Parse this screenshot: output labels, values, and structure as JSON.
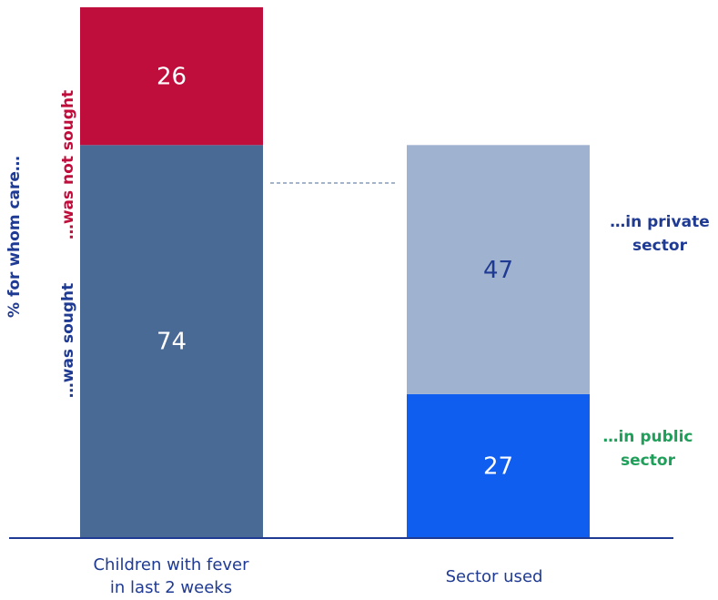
{
  "chart_data": {
    "type": "bar",
    "stacked": true,
    "categories": [
      "Children with fever\nin last 2 weeks",
      "Sector used"
    ],
    "ylabel": "% for whom care...",
    "ylim": [
      0,
      100
    ],
    "bars": [
      {
        "category": "Children with fever in last 2 weeks",
        "segments": [
          {
            "label": "...was sought",
            "value": 74,
            "color": "#4a6a96"
          },
          {
            "label": "...was not sought",
            "value": 26,
            "color": "#c00e3c"
          }
        ]
      },
      {
        "category": "Sector used",
        "segments": [
          {
            "label": "...in public sector",
            "value": 27,
            "color": "#0f5ef0"
          },
          {
            "label": "...in private sector",
            "value": 47,
            "color": "#9fb2cf"
          }
        ]
      }
    ],
    "grid": false,
    "connector": "dashed line from top of 'was sought' segment to top of sector bar"
  },
  "labels": {
    "ylabel": "% for whom care…",
    "was_sought": "…was sought",
    "was_not_sought": "…was not sought",
    "private_line1": "…in private",
    "private_line2": "sector",
    "public_line1": "…in public",
    "public_line2": "sector",
    "cat1_line1": "Children with fever",
    "cat1_line2": "in last 2 weeks",
    "cat2": "Sector used",
    "v26": "26",
    "v74": "74",
    "v47": "47",
    "v27": "27"
  },
  "colors": {
    "navy": "#1f3a93",
    "red": "#c00e3c",
    "green": "#1ea05a"
  }
}
